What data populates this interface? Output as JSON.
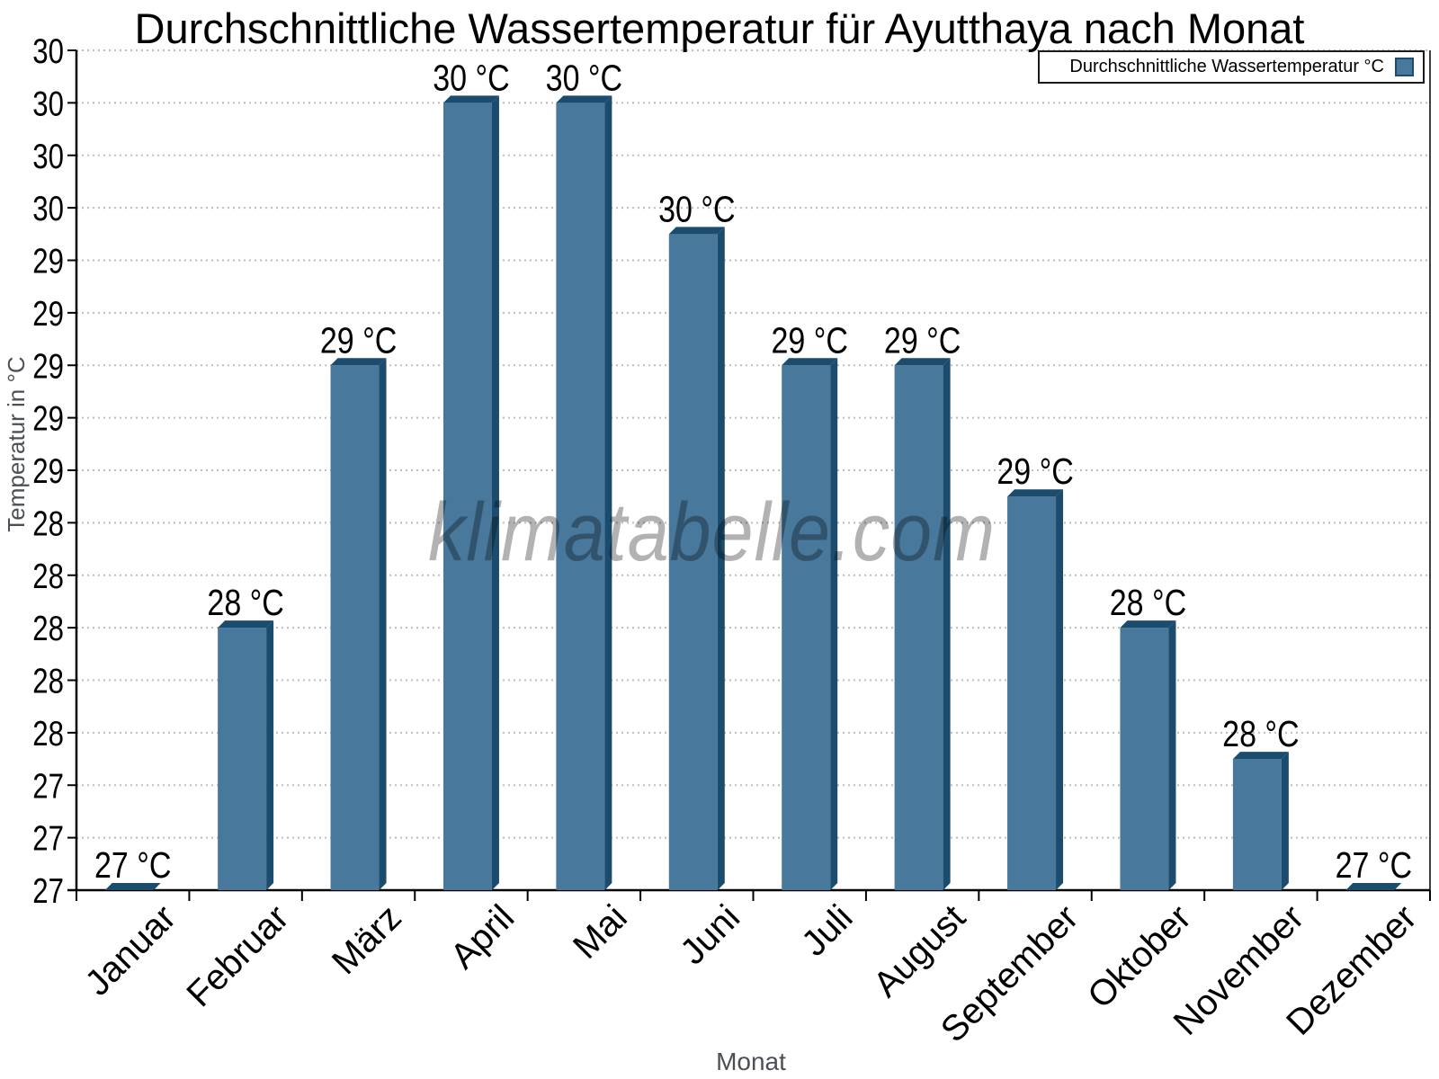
{
  "title": "Durchschnittliche Wassertemperatur für Ayutthaya nach Monat",
  "watermark": "klimatabelle.com",
  "legend": {
    "label": "Durchschnittliche Wassertemperatur °C"
  },
  "chart_data": {
    "type": "bar",
    "title": "Durchschnittliche Wassertemperatur für Ayutthaya nach Monat",
    "xlabel": "Monat",
    "ylabel": "Temperatur in °C",
    "categories": [
      "Januar",
      "Februar",
      "März",
      "April",
      "Mai",
      "Juni",
      "Juli",
      "August",
      "September",
      "Oktober",
      "November",
      "Dezember"
    ],
    "values": [
      27,
      28,
      29,
      30,
      30,
      29.5,
      29,
      29,
      28.5,
      28,
      27.5,
      27
    ],
    "bar_labels": [
      "27 °C",
      "28 °C",
      "29 °C",
      "30 °C",
      "30 °C",
      "30 °C",
      "29 °C",
      "29 °C",
      "29 °C",
      "28 °C",
      "28 °C",
      "27 °C"
    ],
    "ylim": [
      27,
      30.2
    ],
    "ytick_step": 0.2,
    "ytick_label_format": "rounded integer",
    "grid": "dotted horizontal",
    "legend_position": "top-right",
    "colors": {
      "bar_face": "#48789b",
      "bar_edge": "#1b4c6d",
      "grid": "#bdbdbd",
      "axis": "#000000",
      "axis_title": "#4a5056",
      "watermark": "#000000",
      "watermark_opacity": 0.3
    }
  }
}
